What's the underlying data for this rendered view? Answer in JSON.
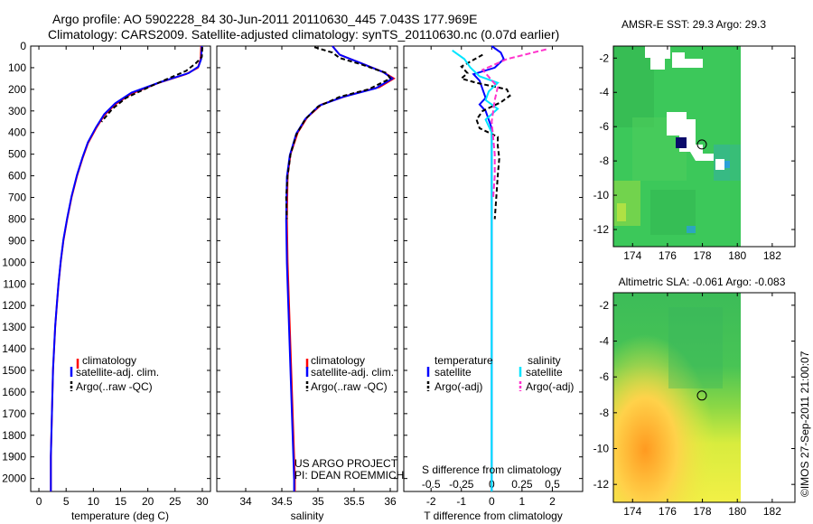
{
  "figure": {
    "title_line1": "Argo profile: AO 5902228_84 30-Jun-2011 20110630_445 7.043S 177.969E",
    "title_line2": "Climatology: CARS2009. Satellite-adjusted climatology: synTS_20110630.nc (0.07d earlier)",
    "side_label": "©IMOS 27-Sep-2011 21:00:07",
    "credit_line1": "US ARGO PROJECT",
    "credit_line2": "PI: DEAN ROEMMICH"
  },
  "colors": {
    "climatology": "#ff0000",
    "satellite": "#0000ff",
    "argo": "#000000",
    "satellite_sal": "#00e5ff",
    "argo_sal": "#ff33cc"
  },
  "chart_data": [
    {
      "id": "temperature",
      "type": "line",
      "xlabel": "temperature (deg C)",
      "ylabel": "",
      "xlim": [
        -1.5,
        31.5
      ],
      "ylim": [
        0,
        2060
      ],
      "y_reversed": true,
      "xticks": [
        0,
        5,
        10,
        15,
        20,
        25,
        30
      ],
      "xtick_labels": [
        "0",
        "5",
        "10",
        "15",
        "20",
        "25",
        "30"
      ],
      "yticks": [
        0,
        100,
        200,
        300,
        400,
        500,
        600,
        700,
        800,
        900,
        1000,
        1100,
        1200,
        1300,
        1400,
        1500,
        1600,
        1700,
        1800,
        1900,
        2000
      ],
      "ytick_labels": [
        "0",
        "100",
        "200",
        "300",
        "400",
        "500",
        "600",
        "700",
        "800",
        "900",
        "1000",
        "1100",
        "1200",
        "1300",
        "1400",
        "1500",
        "1600",
        "1700",
        "1800",
        "1900",
        "2000"
      ],
      "legend": [
        "climatology",
        "satellite-adj. clim.",
        "Argo(..raw -QC)"
      ],
      "series": [
        {
          "name": "climatology",
          "color": "#ff0000",
          "dash": "",
          "points": [
            [
              29.8,
              0
            ],
            [
              29.7,
              60
            ],
            [
              29.2,
              100
            ],
            [
              27,
              130
            ],
            [
              22,
              170
            ],
            [
              17,
              220
            ],
            [
              14,
              270
            ],
            [
              12,
              320
            ],
            [
              10.5,
              380
            ],
            [
              9,
              450
            ],
            [
              8,
              520
            ],
            [
              7,
              600
            ],
            [
              6,
              700
            ],
            [
              5.2,
              800
            ],
            [
              4.5,
              900
            ],
            [
              4,
              1000
            ],
            [
              3.6,
              1100
            ],
            [
              3.3,
              1200
            ],
            [
              3,
              1300
            ],
            [
              2.8,
              1400
            ],
            [
              2.6,
              1500
            ],
            [
              2.5,
              1600
            ],
            [
              2.4,
              1700
            ],
            [
              2.3,
              1800
            ],
            [
              2.2,
              1900
            ],
            [
              2.2,
              2000
            ],
            [
              2.2,
              2060
            ]
          ]
        },
        {
          "name": "satellite-adj. clim.",
          "color": "#0000ff",
          "dash": "",
          "points": [
            [
              29.9,
              0
            ],
            [
              29.8,
              60
            ],
            [
              29.3,
              95
            ],
            [
              27.5,
              125
            ],
            [
              22.5,
              165
            ],
            [
              17,
              215
            ],
            [
              14,
              265
            ],
            [
              12,
              315
            ],
            [
              10.5,
              375
            ],
            [
              9,
              445
            ],
            [
              8,
              515
            ],
            [
              7,
              595
            ],
            [
              6,
              695
            ],
            [
              5.2,
              795
            ],
            [
              4.5,
              895
            ],
            [
              4,
              995
            ],
            [
              3.6,
              1095
            ],
            [
              3.3,
              1195
            ],
            [
              3,
              1295
            ],
            [
              2.8,
              1395
            ],
            [
              2.6,
              1495
            ],
            [
              2.5,
              1595
            ],
            [
              2.4,
              1695
            ],
            [
              2.3,
              1795
            ],
            [
              2.2,
              1895
            ],
            [
              2.2,
              1995
            ],
            [
              2.2,
              2060
            ]
          ]
        },
        {
          "name": "Argo(..raw -QC)",
          "color": "#000000",
          "dash": "5,3",
          "points": [
            [
              30,
              5
            ],
            [
              29.9,
              50
            ],
            [
              28.8,
              80
            ],
            [
              27,
              115
            ],
            [
              21,
              180
            ],
            [
              16,
              240
            ],
            [
              13.5,
              290
            ],
            [
              11.5,
              350
            ]
          ]
        }
      ]
    },
    {
      "id": "salinity",
      "type": "line",
      "xlabel": "salinity",
      "ylabel": "",
      "xlim": [
        33.6,
        36.1
      ],
      "ylim": [
        0,
        2060
      ],
      "y_reversed": true,
      "xticks": [
        34,
        34.5,
        35,
        35.5,
        36
      ],
      "xtick_labels": [
        "34",
        "34.5",
        "35",
        "35.5",
        "36"
      ],
      "legend": [
        "climatology",
        "satellite-adj. clim.",
        "Argo(..raw -QC)"
      ],
      "series": [
        {
          "name": "climatology",
          "color": "#ff0000",
          "dash": "",
          "points": [
            [
              35.2,
              0
            ],
            [
              35.3,
              40
            ],
            [
              35.6,
              80
            ],
            [
              35.9,
              120
            ],
            [
              36.05,
              150
            ],
            [
              35.85,
              190
            ],
            [
              35.4,
              230
            ],
            [
              35.05,
              270
            ],
            [
              34.85,
              330
            ],
            [
              34.72,
              400
            ],
            [
              34.62,
              500
            ],
            [
              34.58,
              600
            ],
            [
              34.57,
              800
            ],
            [
              34.58,
              1000
            ],
            [
              34.6,
              1200
            ],
            [
              34.62,
              1400
            ],
            [
              34.64,
              1600
            ],
            [
              34.66,
              1800
            ],
            [
              34.68,
              2000
            ],
            [
              34.68,
              2060
            ]
          ]
        },
        {
          "name": "satellite-adj. clim.",
          "color": "#0000ff",
          "dash": "",
          "points": [
            [
              35.2,
              0
            ],
            [
              35.3,
              40
            ],
            [
              35.6,
              80
            ],
            [
              35.9,
              120
            ],
            [
              36.03,
              150
            ],
            [
              35.8,
              195
            ],
            [
              35.35,
              235
            ],
            [
              35.02,
              275
            ],
            [
              34.83,
              335
            ],
            [
              34.7,
              405
            ],
            [
              34.61,
              505
            ],
            [
              34.57,
              605
            ],
            [
              34.56,
              805
            ],
            [
              34.57,
              1005
            ],
            [
              34.59,
              1205
            ],
            [
              34.61,
              1405
            ],
            [
              34.63,
              1605
            ],
            [
              34.65,
              1805
            ],
            [
              34.67,
              2005
            ],
            [
              34.67,
              2060
            ]
          ]
        },
        {
          "name": "Argo(..raw -QC)",
          "color": "#000000",
          "dash": "5,3",
          "points": [
            [
              34.95,
              5
            ],
            [
              35.2,
              30
            ],
            [
              35.3,
              55
            ],
            [
              35.6,
              85
            ],
            [
              35.95,
              125
            ],
            [
              36.0,
              150
            ],
            [
              35.7,
              200
            ],
            [
              35.3,
              235
            ],
            [
              35.0,
              280
            ],
            [
              34.82,
              340
            ],
            [
              34.7,
              410
            ],
            [
              34.62,
              500
            ],
            [
              34.58,
              600
            ],
            [
              34.56,
              700
            ],
            [
              34.57,
              800
            ]
          ]
        }
      ]
    },
    {
      "id": "difference",
      "type": "line",
      "xlabel": "T difference from climatology",
      "xlabel_top": "S difference from climatology",
      "ylabel": "",
      "xlim": [
        -2.9,
        3.0
      ],
      "ylim": [
        0,
        2060
      ],
      "y_reversed": true,
      "xticks": [
        -2,
        -1,
        0,
        1,
        2
      ],
      "xtick_labels": [
        "-2",
        "-1",
        "0",
        "1",
        "2"
      ],
      "s_tick_positions": [
        -2,
        -1,
        0,
        1,
        2
      ],
      "s_tick_labels": [
        "-0.5",
        "-0.25",
        "0",
        "0.25",
        "0.5"
      ],
      "legend_title_t": "temperature",
      "legend_title_s": "salinity",
      "legend": [
        "satellite",
        "Argo(-adj)",
        "satellite",
        "Argo(-adj)"
      ],
      "series": [
        {
          "name": "satellite",
          "color": "#0000ff",
          "dash": "",
          "points": [
            [
              0,
              0
            ],
            [
              0.3,
              30
            ],
            [
              0.4,
              60
            ],
            [
              0.1,
              100
            ],
            [
              -0.6,
              130
            ],
            [
              -0.4,
              160
            ],
            [
              -0.3,
              200
            ],
            [
              -0.2,
              240
            ],
            [
              -0.4,
              270
            ],
            [
              -0.2,
              300
            ],
            [
              -0.1,
              340
            ],
            [
              0,
              380
            ],
            [
              0,
              500
            ],
            [
              0,
              800
            ],
            [
              0,
              1200
            ],
            [
              0,
              1600
            ],
            [
              0,
              2000
            ],
            [
              0,
              2060
            ]
          ]
        },
        {
          "name": "Argo(-adj)",
          "color": "#000000",
          "dash": "5,3",
          "points": [
            [
              -0.3,
              40
            ],
            [
              -1.0,
              95
            ],
            [
              -0.8,
              125
            ],
            [
              -1.0,
              150
            ],
            [
              -0.5,
              170
            ],
            [
              0.5,
              200
            ],
            [
              0.6,
              230
            ],
            [
              0.3,
              260
            ],
            [
              -0.3,
              300
            ],
            [
              -0.5,
              340
            ],
            [
              -0.4,
              380
            ],
            [
              0.2,
              420
            ],
            [
              0.2,
              460
            ],
            [
              0.25,
              520
            ],
            [
              0.2,
              600
            ],
            [
              0.15,
              700
            ],
            [
              0.1,
              800
            ]
          ]
        },
        {
          "name": "satellite",
          "color": "#00e5ff",
          "dash": "",
          "points": [
            [
              -1.3,
              20
            ],
            [
              -0.9,
              60
            ],
            [
              -0.7,
              100
            ],
            [
              -0.4,
              140
            ],
            [
              0.2,
              170
            ],
            [
              -0.1,
              210
            ],
            [
              -0.2,
              250
            ],
            [
              0.2,
              290
            ],
            [
              -0.2,
              340
            ],
            [
              0,
              400
            ],
            [
              0,
              500
            ],
            [
              0,
              900
            ],
            [
              0,
              1300
            ],
            [
              0,
              1700
            ],
            [
              0,
              2060
            ]
          ]
        },
        {
          "name": "Argo(-adj)",
          "color": "#ff33cc",
          "dash": "6,3",
          "points": [
            [
              1.8,
              15
            ],
            [
              0.5,
              60
            ],
            [
              -0.3,
              110
            ],
            [
              0.2,
              190
            ],
            [
              0.1,
              250
            ],
            [
              0,
              350
            ],
            [
              0.1,
              500
            ],
            [
              0.1,
              600
            ],
            [
              0.05,
              700
            ]
          ]
        }
      ]
    },
    {
      "id": "sst_map",
      "type": "heatmap",
      "title": "AMSR-E SST: 29.3  Argo: 29.3",
      "xlim": [
        172.9,
        183.3
      ],
      "ylim": [
        -13.0,
        -1.3
      ],
      "xticks": [
        174,
        176,
        178,
        180,
        182
      ],
      "xtick_labels": [
        "174",
        "176",
        "178",
        "180",
        "182"
      ],
      "yticks": [
        -2,
        -4,
        -6,
        -8,
        -10,
        -12
      ],
      "ytick_labels": [
        "-2",
        "-4",
        "-6",
        "-8",
        "-10",
        "-12"
      ],
      "float_position": [
        177.97,
        -7.04
      ],
      "data_east_limit": 180
    },
    {
      "id": "sla_map",
      "type": "heatmap",
      "title": "Altimetric SLA: -0.061  Argo: -0.083",
      "xlim": [
        172.9,
        183.3
      ],
      "ylim": [
        -13.0,
        -1.3
      ],
      "xticks": [
        174,
        176,
        178,
        180,
        182
      ],
      "xtick_labels": [
        "174",
        "176",
        "178",
        "180",
        "182"
      ],
      "yticks": [
        -2,
        -4,
        -6,
        -8,
        -10,
        -12
      ],
      "ytick_labels": [
        "-2",
        "-4",
        "-6",
        "-8",
        "-10",
        "-12"
      ],
      "float_position": [
        177.97,
        -7.04
      ],
      "data_east_limit": 180
    }
  ]
}
